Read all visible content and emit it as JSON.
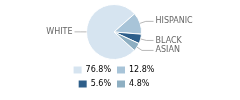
{
  "chart_data": {
    "type": "pie",
    "categories": [
      "WHITE",
      "HISPANIC",
      "BLACK",
      "ASIAN"
    ],
    "values": [
      76.8,
      12.8,
      5.6,
      4.8
    ],
    "value_labels": [
      "76.8%",
      "12.8%",
      "5.6%",
      "4.8%"
    ],
    "colors": [
      "#d6e4f0",
      "#a8c4d8",
      "#2e5f8a",
      "#8eafc2"
    ],
    "legend": "bottom"
  }
}
